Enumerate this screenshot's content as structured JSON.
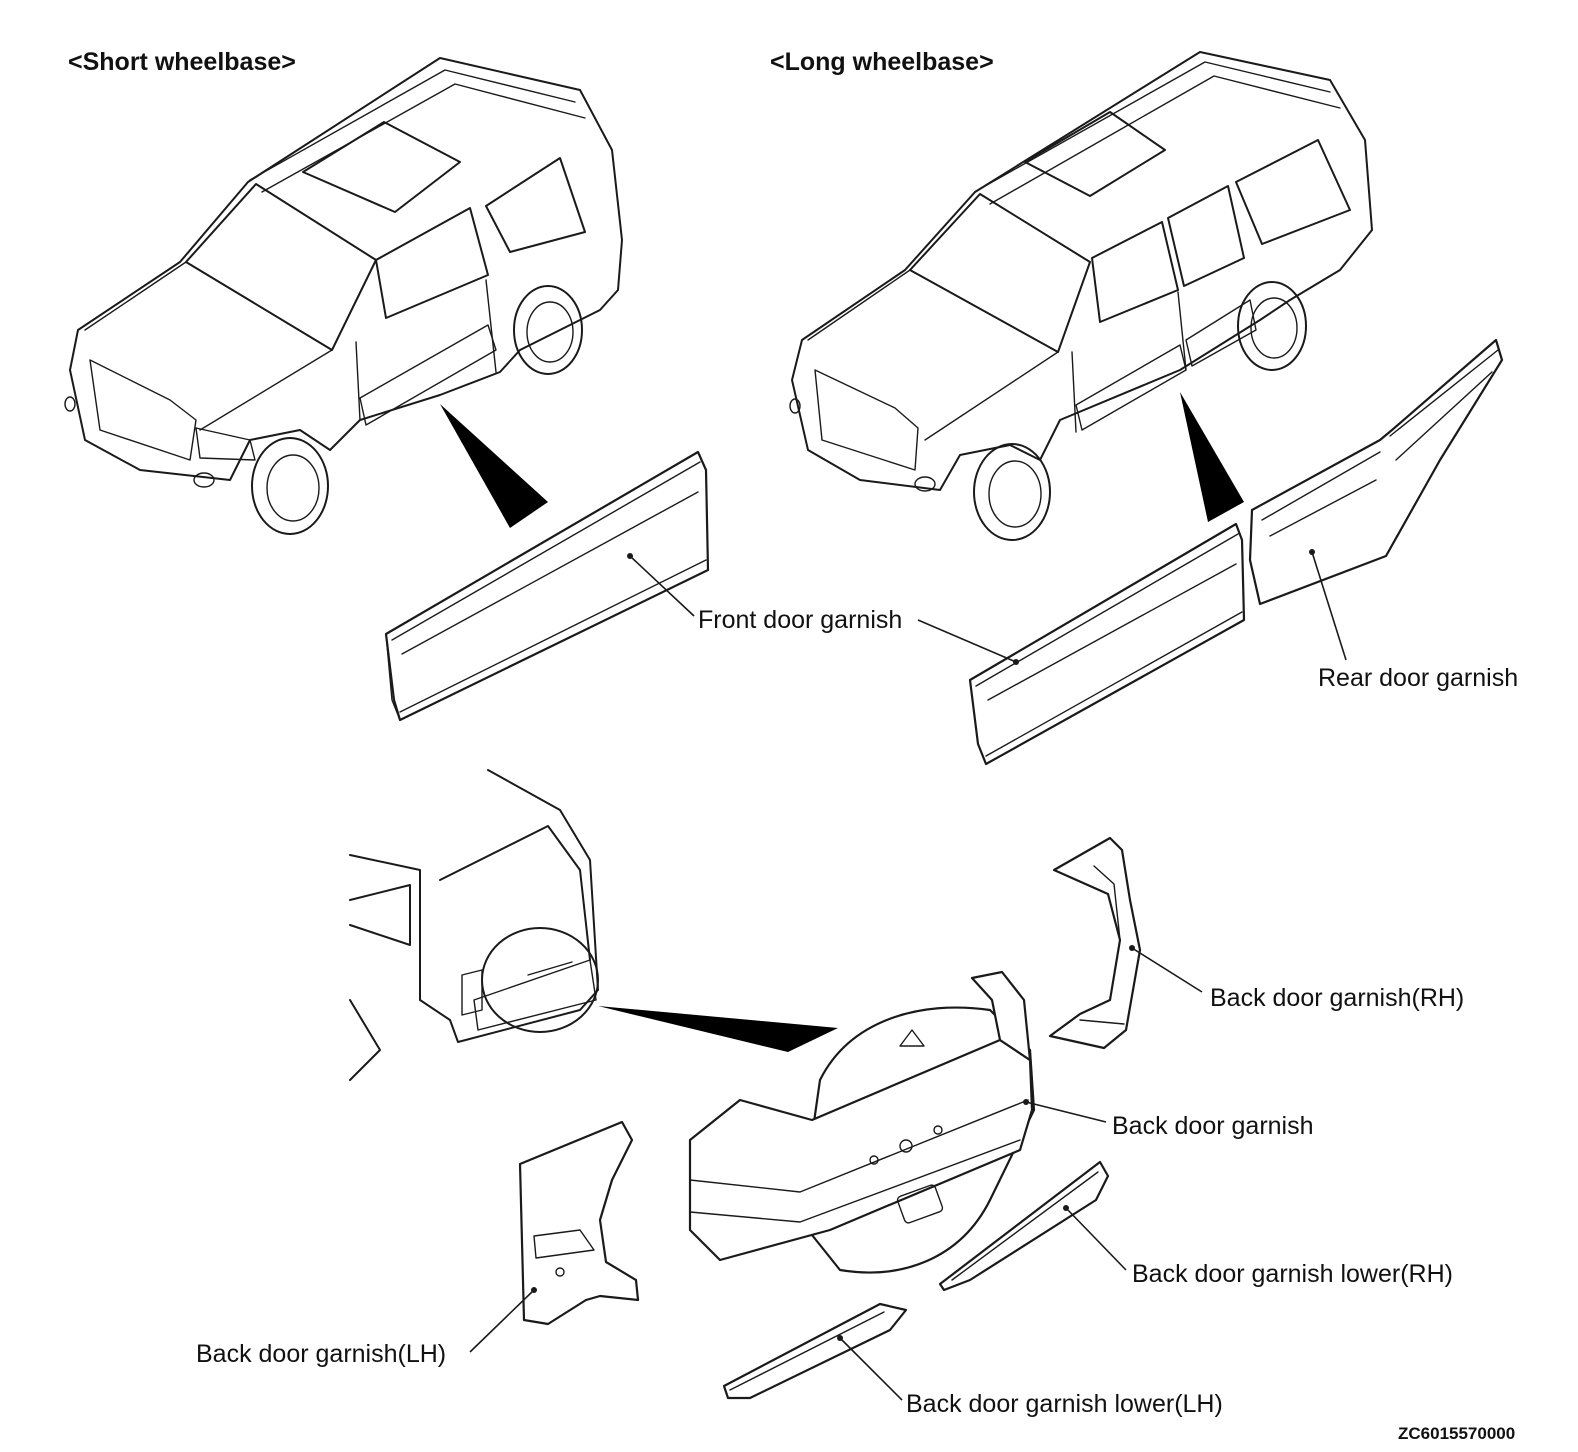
{
  "headings": {
    "short_wheelbase": "<Short wheelbase>",
    "long_wheelbase": "<Long wheelbase>"
  },
  "callouts": {
    "front_door_garnish": "Front door garnish",
    "rear_door_garnish": "Rear door garnish",
    "back_door_garnish_rh": "Back door garnish(RH)",
    "back_door_garnish": "Back door garnish",
    "back_door_garnish_lower_rh": "Back door garnish lower(RH)",
    "back_door_garnish_lh": "Back door garnish(LH)",
    "back_door_garnish_lower_lh": "Back door garnish lower(LH)"
  },
  "figure_code": "ZC6015570000"
}
